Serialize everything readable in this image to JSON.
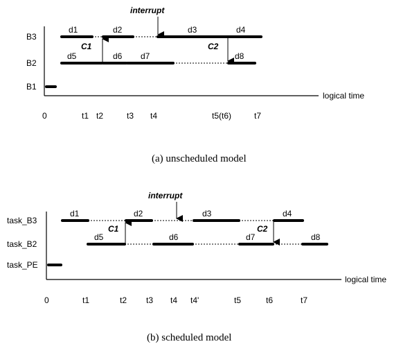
{
  "diagram_a": {
    "caption": "(a) unscheduled model",
    "rows": [
      "B3",
      "B2",
      "B1"
    ],
    "x_axis_label": "logical time",
    "origin_label": "0",
    "tick_labels": [
      "t1",
      "t2",
      "t3",
      "t4",
      "t5(t6)",
      "t7"
    ],
    "interrupt_label": "interrupt",
    "comm_labels": [
      "C1",
      "C2"
    ],
    "segment_labels": [
      "d1",
      "d2",
      "d3",
      "d4",
      "d5",
      "d6",
      "d7",
      "d8"
    ]
  },
  "diagram_b": {
    "caption": "(b) scheduled model",
    "rows": [
      "task_B3",
      "task_B2",
      "task_PE"
    ],
    "x_axis_label": "logical time",
    "origin_label": "0",
    "tick_labels": [
      "t1",
      "t2",
      "t3",
      "t4",
      "t4'",
      "t5",
      "t6",
      "t7"
    ],
    "interrupt_label": "interrupt",
    "comm_labels": [
      "C1",
      "C2"
    ],
    "segment_labels": [
      "d1",
      "d2",
      "d3",
      "d4",
      "d5",
      "d6",
      "d7",
      "d8"
    ]
  }
}
